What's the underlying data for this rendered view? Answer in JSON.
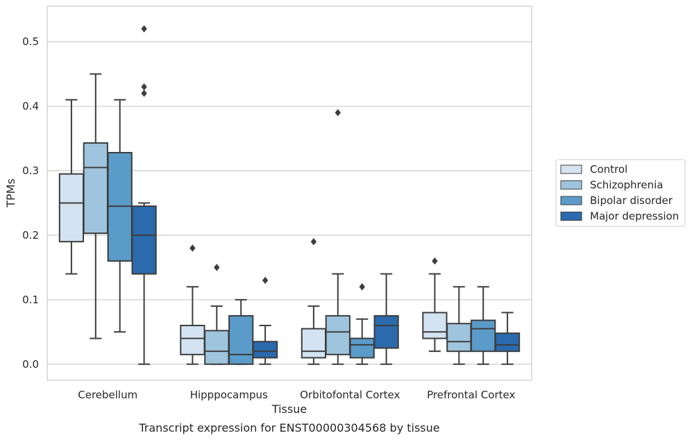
{
  "caption": "Transcript expression for ENST00000304568 by tissue",
  "chart_data": {
    "type": "boxplot",
    "xlabel": "Tissue",
    "ylabel": "TPMs",
    "ylim": [
      -0.025,
      0.555
    ],
    "yticks": [
      "0.0",
      "0.1",
      "0.2",
      "0.3",
      "0.4",
      "0.5"
    ],
    "grid": true,
    "legend_position": "right",
    "categories": [
      "Cerebellum",
      "Hipppocampus",
      "Orbitofontal Cortex",
      "Prefrontal Cortex"
    ],
    "series": [
      {
        "name": "Control",
        "color": "#d3e3f2",
        "boxes": [
          {
            "whislo": 0.14,
            "q1": 0.19,
            "med": 0.25,
            "q3": 0.295,
            "whishi": 0.41,
            "fliers": []
          },
          {
            "whislo": 0.0,
            "q1": 0.015,
            "med": 0.04,
            "q3": 0.06,
            "whishi": 0.12,
            "fliers": [
              0.18
            ]
          },
          {
            "whislo": 0.0,
            "q1": 0.01,
            "med": 0.02,
            "q3": 0.055,
            "whishi": 0.09,
            "fliers": [
              0.19
            ]
          },
          {
            "whislo": 0.02,
            "q1": 0.04,
            "med": 0.05,
            "q3": 0.08,
            "whishi": 0.14,
            "fliers": [
              0.16
            ]
          }
        ]
      },
      {
        "name": "Schizophrenia",
        "color": "#9fc5de",
        "boxes": [
          {
            "whislo": 0.04,
            "q1": 0.203,
            "med": 0.305,
            "q3": 0.343,
            "whishi": 0.45,
            "fliers": []
          },
          {
            "whislo": 0.0,
            "q1": 0.0,
            "med": 0.02,
            "q3": 0.052,
            "whishi": 0.09,
            "fliers": [
              0.15
            ]
          },
          {
            "whislo": 0.0,
            "q1": 0.015,
            "med": 0.05,
            "q3": 0.075,
            "whishi": 0.14,
            "fliers": [
              0.39
            ]
          },
          {
            "whislo": 0.0,
            "q1": 0.02,
            "med": 0.035,
            "q3": 0.063,
            "whishi": 0.12,
            "fliers": []
          }
        ]
      },
      {
        "name": "Bipolar disorder",
        "color": "#5b9bc9",
        "boxes": [
          {
            "whislo": 0.05,
            "q1": 0.16,
            "med": 0.245,
            "q3": 0.328,
            "whishi": 0.41,
            "fliers": []
          },
          {
            "whislo": 0.0,
            "q1": 0.0,
            "med": 0.015,
            "q3": 0.075,
            "whishi": 0.1,
            "fliers": []
          },
          {
            "whislo": 0.0,
            "q1": 0.01,
            "med": 0.03,
            "q3": 0.04,
            "whishi": 0.07,
            "fliers": [
              0.12
            ]
          },
          {
            "whislo": 0.0,
            "q1": 0.02,
            "med": 0.055,
            "q3": 0.068,
            "whishi": 0.12,
            "fliers": []
          }
        ]
      },
      {
        "name": "Major depression",
        "color": "#2a6aad",
        "boxes": [
          {
            "whislo": 0.0,
            "q1": 0.14,
            "med": 0.2,
            "q3": 0.245,
            "whishi": 0.25,
            "fliers": [
              0.42,
              0.43,
              0.52
            ]
          },
          {
            "whislo": 0.0,
            "q1": 0.01,
            "med": 0.02,
            "q3": 0.035,
            "whishi": 0.06,
            "fliers": [
              0.13
            ]
          },
          {
            "whislo": 0.0,
            "q1": 0.025,
            "med": 0.06,
            "q3": 0.075,
            "whishi": 0.14,
            "fliers": []
          },
          {
            "whislo": 0.0,
            "q1": 0.02,
            "med": 0.03,
            "q3": 0.048,
            "whishi": 0.08,
            "fliers": []
          }
        ]
      }
    ]
  }
}
